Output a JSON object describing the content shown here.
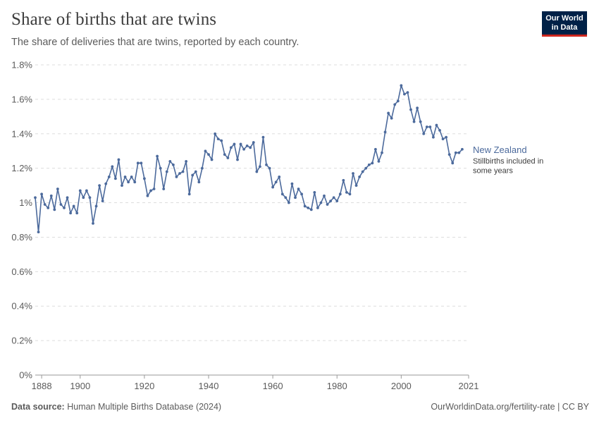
{
  "header": {
    "title": "Share of births that are twins",
    "subtitle": "The share of deliveries that are twins, reported by each country.",
    "logo_line1": "Our World",
    "logo_line2": "in Data"
  },
  "footer": {
    "source_label": "Data source:",
    "source_text": "Human Multiple Births Database (2024)",
    "credit": "OurWorldinData.org/fertility-rate | CC BY"
  },
  "colors": {
    "series": "#4c6a9c",
    "grid": "#dddddd",
    "axis": "#999999"
  },
  "chart_data": {
    "type": "line",
    "title": "Share of births that are twins",
    "subtitle": "The share of deliveries that are twins, reported by each country.",
    "xlabel": "",
    "ylabel": "",
    "unit": "%",
    "xlim": [
      1886,
      2021
    ],
    "ylim": [
      0,
      1.8
    ],
    "y_ticks": [
      {
        "value": 0,
        "label": "0%"
      },
      {
        "value": 0.2,
        "label": "0.2%"
      },
      {
        "value": 0.4,
        "label": "0.4%"
      },
      {
        "value": 0.6,
        "label": "0.6%"
      },
      {
        "value": 0.8,
        "label": "0.8%"
      },
      {
        "value": 1.0,
        "label": "1%"
      },
      {
        "value": 1.2,
        "label": "1.2%"
      },
      {
        "value": 1.4,
        "label": "1.4%"
      },
      {
        "value": 1.6,
        "label": "1.6%"
      },
      {
        "value": 1.8,
        "label": "1.8%"
      }
    ],
    "x_ticks": [
      {
        "value": 1888,
        "label": "1888"
      },
      {
        "value": 1900,
        "label": "1900"
      },
      {
        "value": 1920,
        "label": "1920"
      },
      {
        "value": 1940,
        "label": "1940"
      },
      {
        "value": 1960,
        "label": "1960"
      },
      {
        "value": 1980,
        "label": "1980"
      },
      {
        "value": 2000,
        "label": "2000"
      },
      {
        "value": 2021,
        "label": "2021"
      }
    ],
    "grid": "horizontal-dashed",
    "legend": "end-of-line label",
    "series": [
      {
        "name": "New Zealand",
        "note": "Stillbirths included in some years",
        "points": [
          [
            1886,
            1.03
          ],
          [
            1887,
            0.83
          ],
          [
            1888,
            1.05
          ],
          [
            1889,
            0.99
          ],
          [
            1890,
            0.97
          ],
          [
            1891,
            1.04
          ],
          [
            1892,
            0.96
          ],
          [
            1893,
            1.08
          ],
          [
            1894,
            0.99
          ],
          [
            1895,
            0.97
          ],
          [
            1896,
            1.03
          ],
          [
            1897,
            0.94
          ],
          [
            1898,
            0.98
          ],
          [
            1899,
            0.94
          ],
          [
            1900,
            1.07
          ],
          [
            1901,
            1.03
          ],
          [
            1902,
            1.07
          ],
          [
            1903,
            1.03
          ],
          [
            1904,
            0.88
          ],
          [
            1905,
            0.98
          ],
          [
            1906,
            1.1
          ],
          [
            1907,
            1.01
          ],
          [
            1908,
            1.11
          ],
          [
            1909,
            1.15
          ],
          [
            1910,
            1.21
          ],
          [
            1911,
            1.14
          ],
          [
            1912,
            1.25
          ],
          [
            1913,
            1.1
          ],
          [
            1914,
            1.15
          ],
          [
            1915,
            1.12
          ],
          [
            1916,
            1.15
          ],
          [
            1917,
            1.12
          ],
          [
            1918,
            1.23
          ],
          [
            1919,
            1.23
          ],
          [
            1920,
            1.14
          ],
          [
            1921,
            1.04
          ],
          [
            1922,
            1.07
          ],
          [
            1923,
            1.08
          ],
          [
            1924,
            1.27
          ],
          [
            1925,
            1.2
          ],
          [
            1926,
            1.08
          ],
          [
            1927,
            1.18
          ],
          [
            1928,
            1.24
          ],
          [
            1929,
            1.22
          ],
          [
            1930,
            1.15
          ],
          [
            1931,
            1.17
          ],
          [
            1932,
            1.18
          ],
          [
            1933,
            1.24
          ],
          [
            1934,
            1.05
          ],
          [
            1935,
            1.16
          ],
          [
            1936,
            1.18
          ],
          [
            1937,
            1.12
          ],
          [
            1938,
            1.2
          ],
          [
            1939,
            1.3
          ],
          [
            1940,
            1.28
          ],
          [
            1941,
            1.25
          ],
          [
            1942,
            1.4
          ],
          [
            1943,
            1.37
          ],
          [
            1944,
            1.36
          ],
          [
            1945,
            1.28
          ],
          [
            1946,
            1.26
          ],
          [
            1947,
            1.32
          ],
          [
            1948,
            1.34
          ],
          [
            1949,
            1.25
          ],
          [
            1950,
            1.34
          ],
          [
            1951,
            1.31
          ],
          [
            1952,
            1.33
          ],
          [
            1953,
            1.32
          ],
          [
            1954,
            1.35
          ],
          [
            1955,
            1.18
          ],
          [
            1956,
            1.21
          ],
          [
            1957,
            1.38
          ],
          [
            1958,
            1.22
          ],
          [
            1959,
            1.2
          ],
          [
            1960,
            1.09
          ],
          [
            1961,
            1.12
          ],
          [
            1962,
            1.15
          ],
          [
            1963,
            1.05
          ],
          [
            1964,
            1.03
          ],
          [
            1965,
            1.0
          ],
          [
            1966,
            1.11
          ],
          [
            1967,
            1.03
          ],
          [
            1968,
            1.08
          ],
          [
            1969,
            1.05
          ],
          [
            1970,
            0.98
          ],
          [
            1971,
            0.97
          ],
          [
            1972,
            0.96
          ],
          [
            1973,
            1.06
          ],
          [
            1974,
            0.97
          ],
          [
            1975,
            1.0
          ],
          [
            1976,
            1.04
          ],
          [
            1977,
            0.99
          ],
          [
            1978,
            1.01
          ],
          [
            1979,
            1.03
          ],
          [
            1980,
            1.01
          ],
          [
            1981,
            1.05
          ],
          [
            1982,
            1.13
          ],
          [
            1983,
            1.06
          ],
          [
            1984,
            1.05
          ],
          [
            1985,
            1.17
          ],
          [
            1986,
            1.1
          ],
          [
            1987,
            1.15
          ],
          [
            1988,
            1.18
          ],
          [
            1989,
            1.2
          ],
          [
            1990,
            1.22
          ],
          [
            1991,
            1.23
          ],
          [
            1992,
            1.31
          ],
          [
            1993,
            1.24
          ],
          [
            1994,
            1.29
          ],
          [
            1995,
            1.41
          ],
          [
            1996,
            1.52
          ],
          [
            1997,
            1.49
          ],
          [
            1998,
            1.57
          ],
          [
            1999,
            1.59
          ],
          [
            2000,
            1.68
          ],
          [
            2001,
            1.63
          ],
          [
            2002,
            1.64
          ],
          [
            2003,
            1.54
          ],
          [
            2004,
            1.47
          ],
          [
            2005,
            1.55
          ],
          [
            2006,
            1.47
          ],
          [
            2007,
            1.4
          ],
          [
            2008,
            1.44
          ],
          [
            2009,
            1.44
          ],
          [
            2010,
            1.38
          ],
          [
            2011,
            1.45
          ],
          [
            2012,
            1.42
          ],
          [
            2013,
            1.37
          ],
          [
            2014,
            1.38
          ],
          [
            2015,
            1.28
          ],
          [
            2016,
            1.23
          ],
          [
            2017,
            1.29
          ],
          [
            2018,
            1.29
          ],
          [
            2019,
            1.31
          ]
        ]
      }
    ]
  }
}
